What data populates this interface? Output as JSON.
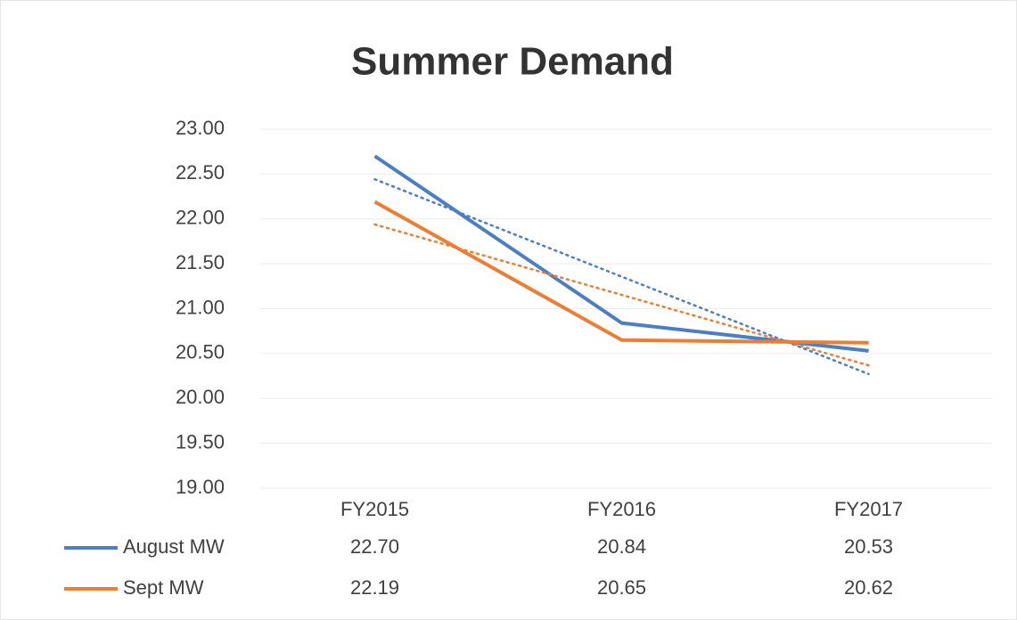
{
  "chart_data": {
    "type": "line",
    "title": "Summer Demand",
    "categories": [
      "FY2015",
      "FY2016",
      "FY2017"
    ],
    "series": [
      {
        "name": "August MW",
        "color": "#4a7fc6",
        "values": [
          22.7,
          20.84,
          20.53
        ],
        "value_labels": [
          "22.70",
          "20.84",
          "20.53"
        ]
      },
      {
        "name": "Sept MW",
        "color": "#ee7d31",
        "values": [
          22.19,
          20.65,
          20.62
        ],
        "value_labels": [
          "22.19",
          "20.65",
          "20.62"
        ]
      }
    ],
    "ylim": [
      19,
      23
    ],
    "yticks": [
      {
        "value": 19,
        "label": "19.00"
      },
      {
        "value": 19.5,
        "label": "19.50"
      },
      {
        "value": 20,
        "label": "20.00"
      },
      {
        "value": 20.5,
        "label": "20.50"
      },
      {
        "value": 21,
        "label": "21.00"
      },
      {
        "value": 21.5,
        "label": "21.50"
      },
      {
        "value": 22,
        "label": "22.00"
      },
      {
        "value": 22.5,
        "label": "22.50"
      },
      {
        "value": 23,
        "label": "23.00"
      }
    ],
    "grid": true,
    "trendline": "linear",
    "data_table": true
  }
}
